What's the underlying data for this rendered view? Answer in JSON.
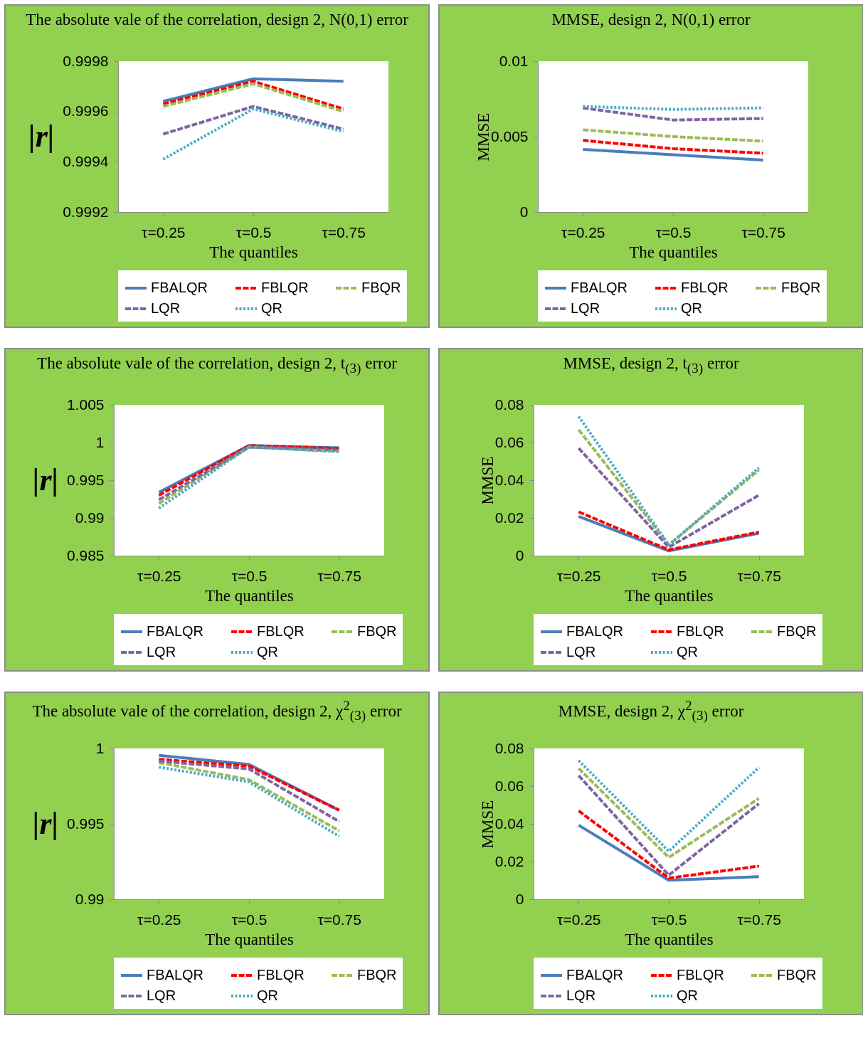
{
  "chart_data": [
    {
      "type": "line",
      "title": "The absolute vale of the correlation, design 2, N(0,1) error",
      "xlabel": "The quantiles",
      "ylabel": "|r|",
      "categories": [
        "τ=0.25",
        "τ=0.5",
        "τ=0.75"
      ],
      "ylim": [
        0.9992,
        0.9998
      ],
      "yticks": [
        0.9992,
        0.9994,
        0.9996,
        0.9998
      ],
      "legend": "bottom",
      "series": [
        {
          "name": "FBALQR",
          "color": "#4a7ebb",
          "line_style": "solid",
          "values": [
            0.99964,
            0.99973,
            0.99972
          ]
        },
        {
          "name": "FBLQR",
          "color": "#ff0000",
          "line_style": "dashed",
          "values": [
            0.99963,
            0.99972,
            0.99961
          ]
        },
        {
          "name": "FBQR",
          "color": "#9bbb59",
          "line_style": "dashed",
          "values": [
            0.99962,
            0.99971,
            0.9996
          ]
        },
        {
          "name": "LQR",
          "color": "#8064a2",
          "line_style": "dashed",
          "values": [
            0.99951,
            0.99962,
            0.99953
          ]
        },
        {
          "name": "QR",
          "color": "#4bacc6",
          "line_style": "dotted",
          "values": [
            0.99941,
            0.99961,
            0.99952
          ]
        }
      ]
    },
    {
      "type": "line",
      "title": "MMSE, design 2, N(0,1) error",
      "xlabel": "The quantiles",
      "ylabel": "MMSE",
      "categories": [
        "τ=0.25",
        "τ=0.5",
        "τ=0.75"
      ],
      "ylim": [
        0,
        0.01
      ],
      "yticks": [
        0,
        0.005,
        0.01
      ],
      "legend": "bottom",
      "series": [
        {
          "name": "FBALQR",
          "color": "#4a7ebb",
          "line_style": "solid",
          "values": [
            0.00415,
            0.0038,
            0.00344
          ]
        },
        {
          "name": "FBLQR",
          "color": "#ff0000",
          "line_style": "dashed",
          "values": [
            0.00475,
            0.0042,
            0.0039
          ]
        },
        {
          "name": "FBQR",
          "color": "#9bbb59",
          "line_style": "dashed",
          "values": [
            0.00545,
            0.005,
            0.0047
          ]
        },
        {
          "name": "LQR",
          "color": "#8064a2",
          "line_style": "dashed",
          "values": [
            0.0069,
            0.0061,
            0.0062
          ]
        },
        {
          "name": "QR",
          "color": "#4bacc6",
          "line_style": "dotted",
          "values": [
            0.007,
            0.0068,
            0.0069
          ]
        }
      ]
    },
    {
      "type": "line",
      "title": "The absolute vale of the correlation, design 2, t$_{(3)}$ error",
      "xlabel": "The quantiles",
      "ylabel": "|r|",
      "categories": [
        "τ=0.25",
        "τ=0.5",
        "τ=0.75"
      ],
      "ylim": [
        0.985,
        1.005
      ],
      "yticks": [
        0.985,
        0.99,
        0.995,
        1,
        1.005
      ],
      "legend": "bottom",
      "series": [
        {
          "name": "FBALQR",
          "color": "#4a7ebb",
          "line_style": "solid",
          "values": [
            0.9934,
            0.9996,
            0.9993
          ]
        },
        {
          "name": "FBLQR",
          "color": "#ff0000",
          "line_style": "dashed",
          "values": [
            0.993,
            0.9996,
            0.9992
          ]
        },
        {
          "name": "FBQR",
          "color": "#9bbb59",
          "line_style": "dashed",
          "values": [
            0.9919,
            0.9994,
            0.9988
          ]
        },
        {
          "name": "LQR",
          "color": "#8064a2",
          "line_style": "dashed",
          "values": [
            0.9924,
            0.9994,
            0.999
          ]
        },
        {
          "name": "QR",
          "color": "#4bacc6",
          "line_style": "dotted",
          "values": [
            0.9913,
            0.9994,
            0.9988
          ]
        }
      ]
    },
    {
      "type": "line",
      "title": "MMSE, design 2, t$_{(3)}$ error",
      "xlabel": "The quantiles",
      "ylabel": "MMSE",
      "categories": [
        "τ=0.25",
        "τ=0.5",
        "τ=0.75"
      ],
      "ylim": [
        0,
        0.08
      ],
      "yticks": [
        0,
        0.02,
        0.04,
        0.06,
        0.08
      ],
      "legend": "bottom",
      "series": [
        {
          "name": "FBALQR",
          "color": "#4a7ebb",
          "line_style": "solid",
          "values": [
            0.0208,
            0.0025,
            0.0119
          ]
        },
        {
          "name": "FBLQR",
          "color": "#ff0000",
          "line_style": "dashed",
          "values": [
            0.0232,
            0.0031,
            0.0125
          ]
        },
        {
          "name": "FBQR",
          "color": "#9bbb59",
          "line_style": "dashed",
          "values": [
            0.0668,
            0.0057,
            0.0454
          ]
        },
        {
          "name": "LQR",
          "color": "#8064a2",
          "line_style": "dashed",
          "values": [
            0.057,
            0.0045,
            0.0321
          ]
        },
        {
          "name": "QR",
          "color": "#4bacc6",
          "line_style": "dotted",
          "values": [
            0.0738,
            0.0057,
            0.0466
          ]
        }
      ]
    },
    {
      "type": "line",
      "title": "The absolute vale of the correlation, design 2, χ$^{2}$$_{(3)}$ error",
      "xlabel": "The quantiles",
      "ylabel": "|r|",
      "categories": [
        "τ=0.25",
        "τ=0.5",
        "τ=0.75"
      ],
      "ylim": [
        0.99,
        1
      ],
      "yticks": [
        0.99,
        0.995,
        1
      ],
      "legend": "bottom",
      "series": [
        {
          "name": "FBALQR",
          "color": "#4a7ebb",
          "line_style": "solid",
          "values": [
            0.99954,
            0.99894,
            0.99591
          ]
        },
        {
          "name": "FBLQR",
          "color": "#ff0000",
          "line_style": "dashed",
          "values": [
            0.99928,
            0.99883,
            0.9959
          ]
        },
        {
          "name": "FBQR",
          "color": "#9bbb59",
          "line_style": "dashed",
          "values": [
            0.99906,
            0.99793,
            0.99454
          ]
        },
        {
          "name": "LQR",
          "color": "#8064a2",
          "line_style": "dashed",
          "values": [
            0.99916,
            0.99864,
            0.99516
          ]
        },
        {
          "name": "QR",
          "color": "#4bacc6",
          "line_style": "dotted",
          "values": [
            0.99876,
            0.99778,
            0.99418
          ]
        }
      ]
    },
    {
      "type": "line",
      "title": "MMSE, design 2, χ$^{2}$$_{(3)}$ error",
      "xlabel": "The quantiles",
      "ylabel": "MMSE",
      "categories": [
        "τ=0.25",
        "τ=0.5",
        "τ=0.75"
      ],
      "ylim": [
        0,
        0.08
      ],
      "yticks": [
        0,
        0.02,
        0.04,
        0.06,
        0.08
      ],
      "legend": "bottom",
      "series": [
        {
          "name": "FBALQR",
          "color": "#4a7ebb",
          "line_style": "solid",
          "values": [
            0.0393,
            0.0101,
            0.012
          ]
        },
        {
          "name": "FBLQR",
          "color": "#ff0000",
          "line_style": "dashed",
          "values": [
            0.0469,
            0.0112,
            0.0176
          ]
        },
        {
          "name": "FBQR",
          "color": "#9bbb59",
          "line_style": "dashed",
          "values": [
            0.0694,
            0.0222,
            0.0535
          ]
        },
        {
          "name": "LQR",
          "color": "#8064a2",
          "line_style": "dashed",
          "values": [
            0.0656,
            0.0128,
            0.0507
          ]
        },
        {
          "name": "QR",
          "color": "#4bacc6",
          "line_style": "dotted",
          "values": [
            0.0736,
            0.0255,
            0.0699
          ]
        }
      ]
    }
  ]
}
